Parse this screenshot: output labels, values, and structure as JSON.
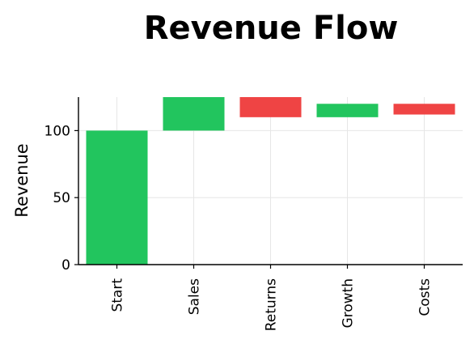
{
  "colors": {
    "increase": "#22c55e",
    "decrease": "#ef4444"
  },
  "chart_data": {
    "type": "bar",
    "subtype": "waterfall",
    "title": "Revenue Flow",
    "xlabel": "",
    "ylabel": "Revenue",
    "categories": [
      "Start",
      "Sales",
      "Returns",
      "Growth",
      "Costs"
    ],
    "values": [
      100,
      25,
      -15,
      10,
      -8
    ],
    "cumulative": [
      100,
      125,
      110,
      120,
      112
    ],
    "ylim": [
      0,
      125
    ],
    "yticks": [
      0,
      50,
      100
    ],
    "xtick_rotation": "vertical",
    "grid": true,
    "legend": "none"
  }
}
